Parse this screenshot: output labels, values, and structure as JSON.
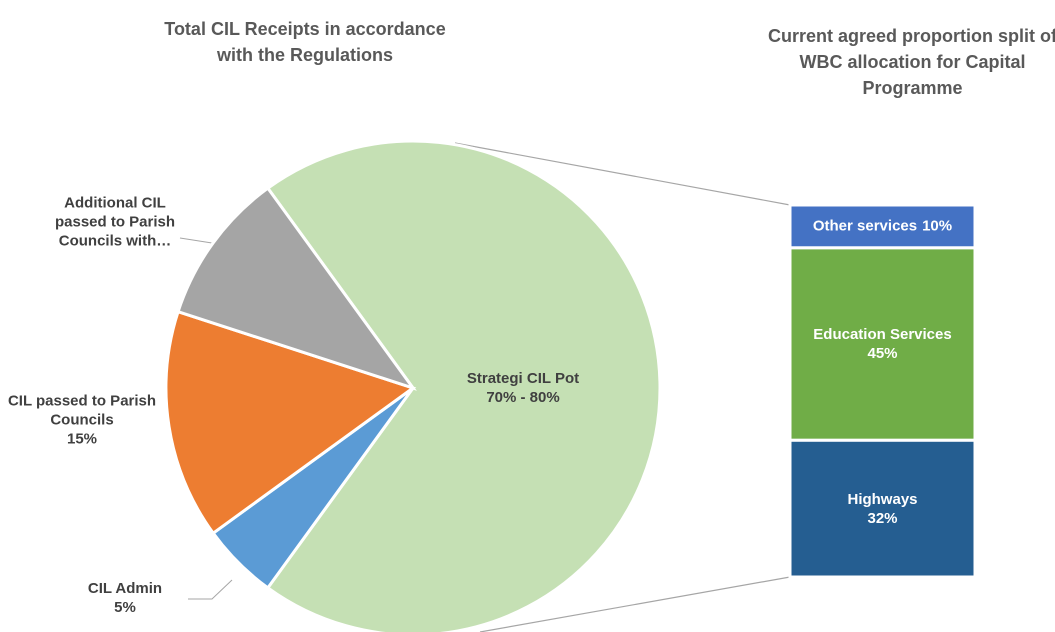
{
  "chart_data": [
    {
      "type": "pie",
      "title": "Total CIL Receipts in accordance with the Regulations",
      "categories": [
        "Strategi CIL Pot",
        "CIL Admin",
        "CIL passed to Parish Councils",
        "Additional CIL passed to Parish Councils with…"
      ],
      "values": [
        70,
        5,
        15,
        10
      ],
      "value_labels": [
        "70% - 80%",
        "5%",
        "15%",
        null
      ],
      "colors": [
        "#c5e0b4",
        "#5b9bd5",
        "#ed7d31",
        "#a5a5a5"
      ]
    },
    {
      "type": "bar",
      "stacked": true,
      "title": "Current agreed proportion split of WBC allocation for Capital Programme",
      "categories": [
        "Highways",
        "Education Services",
        "Other services"
      ],
      "values": [
        32,
        45,
        10
      ],
      "value_labels": [
        "32%",
        "45%",
        "10%"
      ],
      "colors": [
        "#255e91",
        "#70ad47",
        "#4472c4"
      ]
    }
  ]
}
